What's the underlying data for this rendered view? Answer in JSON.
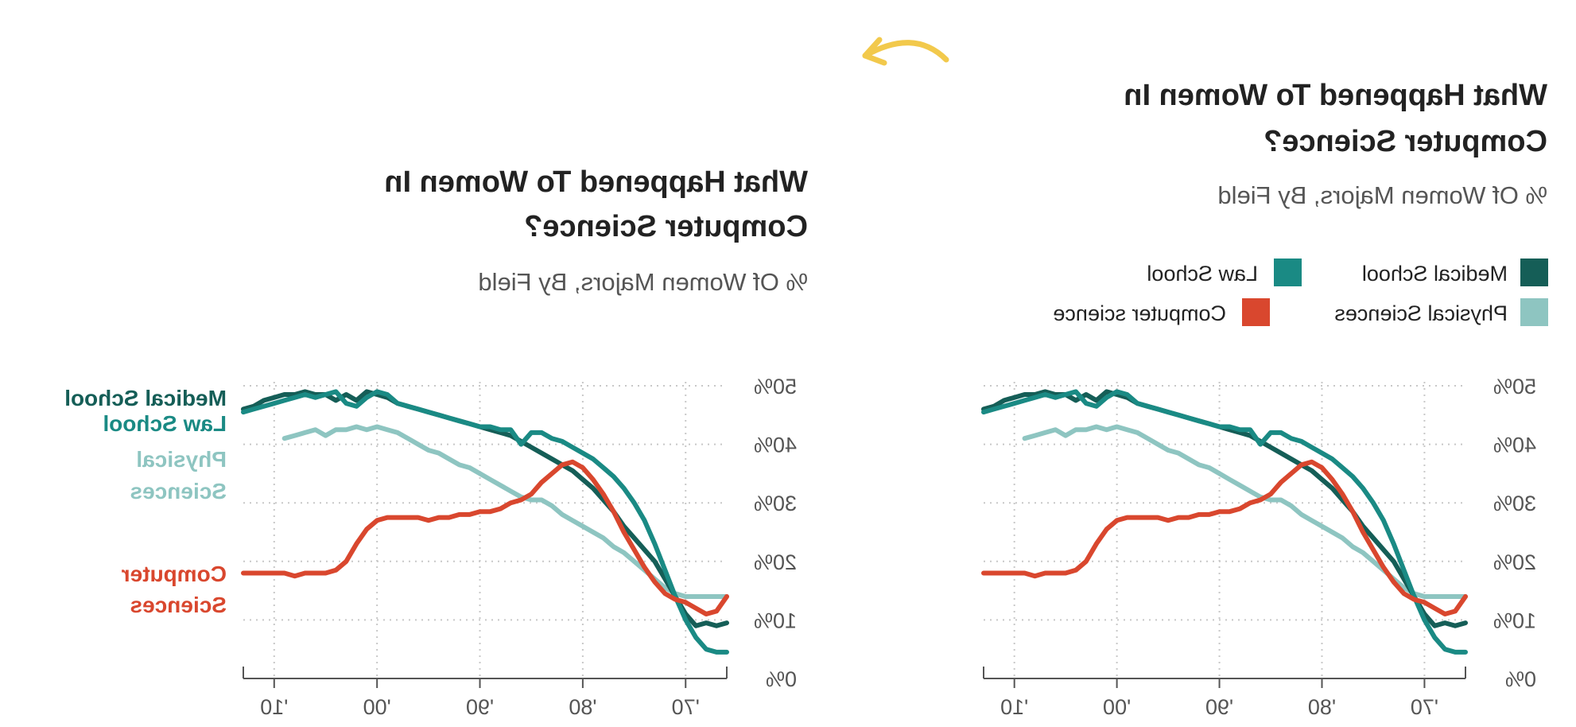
{
  "note": "Both charts are shown horizontally mirrored; all text in the image is mirror-rendered.",
  "arrow_color": "#F2C94C",
  "colors": {
    "medical_school": "#155E57",
    "law_school": "#1A8A84",
    "physical_sciences": "#8EC5C1",
    "computer_science": "#D9472E"
  },
  "charts": {
    "after": {
      "title_line1": "What Happened To Women In",
      "title_line2": "Computer Science?",
      "subtitle": "% Of Women Majors, By Field",
      "end_labels": {
        "medical": "Medical School",
        "law": "Law School",
        "physical_1": "Physical",
        "physical_2": "Sciences",
        "cs_1": "Computer",
        "cs_2": "Sciences"
      }
    },
    "before": {
      "title_line1": "What Happened To Women In",
      "title_line2": "Computer Science?",
      "subtitle": "% Of Women Majors, By Field",
      "legend": {
        "medical": "Medical School",
        "law": "Law School",
        "physical": "Physical Sciences",
        "cs": "Computer science"
      }
    }
  },
  "chart_data": [
    {
      "type": "line",
      "title": "What Happened To Women In Computer Science?",
      "subtitle": "% Of Women Majors, By Field",
      "x_tick_labels": [
        "'70",
        "'80",
        "'90",
        "'00",
        "'10"
      ],
      "y_tick_labels": [
        "0%",
        "10%",
        "20%",
        "30%",
        "40%",
        "50%"
      ],
      "xlim": [
        1966,
        2013
      ],
      "ylim": [
        0,
        50
      ],
      "grid": true,
      "legend_placement": "direct labels at line ends",
      "x": [
        1966,
        1967,
        1968,
        1969,
        1970,
        1971,
        1972,
        1973,
        1974,
        1975,
        1976,
        1977,
        1978,
        1979,
        1980,
        1981,
        1982,
        1983,
        1984,
        1985,
        1986,
        1987,
        1988,
        1989,
        1990,
        1991,
        1992,
        1993,
        1994,
        1995,
        1996,
        1997,
        1998,
        1999,
        2000,
        2001,
        2002,
        2003,
        2004,
        2005,
        2006,
        2007,
        2008,
        2009,
        2010,
        2011,
        2012,
        2013
      ],
      "series": [
        {
          "name": "Medical School",
          "values": [
            9.5,
            9.0,
            9.5,
            9.0,
            11.0,
            14.0,
            17.0,
            20.0,
            22.0,
            24.0,
            26.0,
            28.5,
            30.5,
            32.5,
            34.0,
            35.5,
            36.5,
            37.5,
            38.5,
            39.5,
            40.5,
            41.5,
            42.0,
            42.5,
            43.0,
            43.5,
            44.0,
            44.5,
            45.0,
            45.5,
            46.0,
            46.5,
            47.0,
            48.0,
            48.5,
            49.0,
            47.5,
            48.5,
            47.5,
            48.5,
            48.5,
            49.0,
            48.5,
            48.5,
            48.0,
            47.5,
            46.5,
            46.0
          ]
        },
        {
          "name": "Law School",
          "values": [
            4.5,
            4.5,
            5.0,
            7.0,
            10.0,
            14.0,
            18.5,
            23.0,
            27.0,
            30.0,
            32.5,
            34.5,
            36.0,
            37.5,
            38.5,
            39.5,
            40.5,
            41.0,
            42.0,
            42.0,
            40.0,
            42.5,
            42.5,
            43.0,
            43.0,
            43.5,
            44.0,
            44.5,
            45.0,
            45.5,
            46.0,
            46.5,
            47.0,
            48.5,
            49.0,
            48.0,
            46.5,
            47.0,
            49.0,
            48.5,
            48.0,
            48.5,
            48.0,
            47.5,
            47.0,
            46.5,
            46.0,
            45.5
          ]
        },
        {
          "name": "Physical Sciences",
          "values": [
            14.0,
            14.0,
            14.0,
            14.0,
            14.0,
            14.5,
            15.5,
            17.0,
            18.5,
            20.0,
            21.5,
            22.5,
            24.0,
            25.0,
            26.0,
            27.0,
            28.0,
            29.5,
            30.5,
            30.5,
            31.0,
            32.0,
            33.0,
            34.0,
            35.0,
            36.0,
            36.5,
            37.5,
            38.5,
            39.0,
            40.0,
            41.0,
            42.0,
            42.5,
            43.0,
            42.5,
            43.0,
            42.5,
            42.5,
            41.5,
            42.5,
            42.0,
            41.5,
            41.0,
            null,
            null,
            null,
            null
          ]
        },
        {
          "name": "Computer Sciences",
          "values": [
            14.0,
            11.5,
            11.0,
            12.0,
            13.0,
            13.5,
            14.5,
            16.5,
            19.0,
            22.0,
            25.0,
            28.5,
            31.5,
            34.0,
            36.0,
            37.0,
            36.5,
            35.0,
            33.5,
            31.5,
            30.5,
            30.0,
            29.0,
            28.5,
            28.5,
            28.0,
            28.0,
            27.5,
            27.5,
            27.0,
            27.5,
            27.5,
            27.5,
            27.5,
            27.0,
            25.5,
            23.0,
            20.0,
            18.5,
            18.0,
            18.0,
            18.0,
            17.5,
            18.0,
            18.0,
            18.0,
            18.0,
            18.0
          ]
        }
      ]
    },
    {
      "type": "line",
      "title": "What Happened To Women In Computer Science?",
      "subtitle": "% Of Women Majors, By Field",
      "x_tick_labels": [
        "'70",
        "'80",
        "'90",
        "'00",
        "'10"
      ],
      "y_tick_labels": [
        "0%",
        "10%",
        "20%",
        "30%",
        "40%",
        "50%"
      ],
      "xlim": [
        1966,
        2013
      ],
      "ylim": [
        0,
        50
      ],
      "grid": true,
      "legend_placement": "top",
      "x": [
        1966,
        1967,
        1968,
        1969,
        1970,
        1971,
        1972,
        1973,
        1974,
        1975,
        1976,
        1977,
        1978,
        1979,
        1980,
        1981,
        1982,
        1983,
        1984,
        1985,
        1986,
        1987,
        1988,
        1989,
        1990,
        1991,
        1992,
        1993,
        1994,
        1995,
        1996,
        1997,
        1998,
        1999,
        2000,
        2001,
        2002,
        2003,
        2004,
        2005,
        2006,
        2007,
        2008,
        2009,
        2010,
        2011,
        2012,
        2013
      ],
      "series": [
        {
          "name": "Medical School",
          "values": [
            9.5,
            9.0,
            9.5,
            9.0,
            11.0,
            14.0,
            17.0,
            20.0,
            22.0,
            24.0,
            26.0,
            28.5,
            30.5,
            32.5,
            34.0,
            35.5,
            36.5,
            37.5,
            38.5,
            39.5,
            40.5,
            41.5,
            42.0,
            42.5,
            43.0,
            43.5,
            44.0,
            44.5,
            45.0,
            45.5,
            46.0,
            46.5,
            47.0,
            48.0,
            48.5,
            49.0,
            47.5,
            48.5,
            47.5,
            48.5,
            48.5,
            49.0,
            48.5,
            48.5,
            48.0,
            47.5,
            46.5,
            46.0
          ]
        },
        {
          "name": "Law School",
          "values": [
            4.5,
            4.5,
            5.0,
            7.0,
            10.0,
            14.0,
            18.5,
            23.0,
            27.0,
            30.0,
            32.5,
            34.5,
            36.0,
            37.5,
            38.5,
            39.5,
            40.5,
            41.0,
            42.0,
            42.0,
            40.0,
            42.5,
            42.5,
            43.0,
            43.0,
            43.5,
            44.0,
            44.5,
            45.0,
            45.5,
            46.0,
            46.5,
            47.0,
            48.5,
            49.0,
            48.0,
            46.5,
            47.0,
            49.0,
            48.5,
            48.0,
            48.5,
            48.0,
            47.5,
            47.0,
            46.5,
            46.0,
            45.5
          ]
        },
        {
          "name": "Physical Sciences",
          "values": [
            14.0,
            14.0,
            14.0,
            14.0,
            14.0,
            14.5,
            15.5,
            17.0,
            18.5,
            20.0,
            21.5,
            22.5,
            24.0,
            25.0,
            26.0,
            27.0,
            28.0,
            29.5,
            30.5,
            30.5,
            31.0,
            32.0,
            33.0,
            34.0,
            35.0,
            36.0,
            36.5,
            37.5,
            38.5,
            39.0,
            40.0,
            41.0,
            42.0,
            42.5,
            43.0,
            42.5,
            43.0,
            42.5,
            42.5,
            41.5,
            42.5,
            42.0,
            41.5,
            41.0,
            null,
            null,
            null,
            null
          ]
        },
        {
          "name": "Computer science",
          "values": [
            14.0,
            11.5,
            11.0,
            12.0,
            13.0,
            13.5,
            14.5,
            16.5,
            19.0,
            22.0,
            25.0,
            28.5,
            31.5,
            34.0,
            36.0,
            37.0,
            36.5,
            35.0,
            33.5,
            31.5,
            30.5,
            30.0,
            29.0,
            28.5,
            28.5,
            28.0,
            28.0,
            27.5,
            27.5,
            27.0,
            27.5,
            27.5,
            27.5,
            27.5,
            27.0,
            25.5,
            23.0,
            20.0,
            18.5,
            18.0,
            18.0,
            18.0,
            17.5,
            18.0,
            18.0,
            18.0,
            18.0,
            18.0
          ]
        }
      ]
    }
  ]
}
